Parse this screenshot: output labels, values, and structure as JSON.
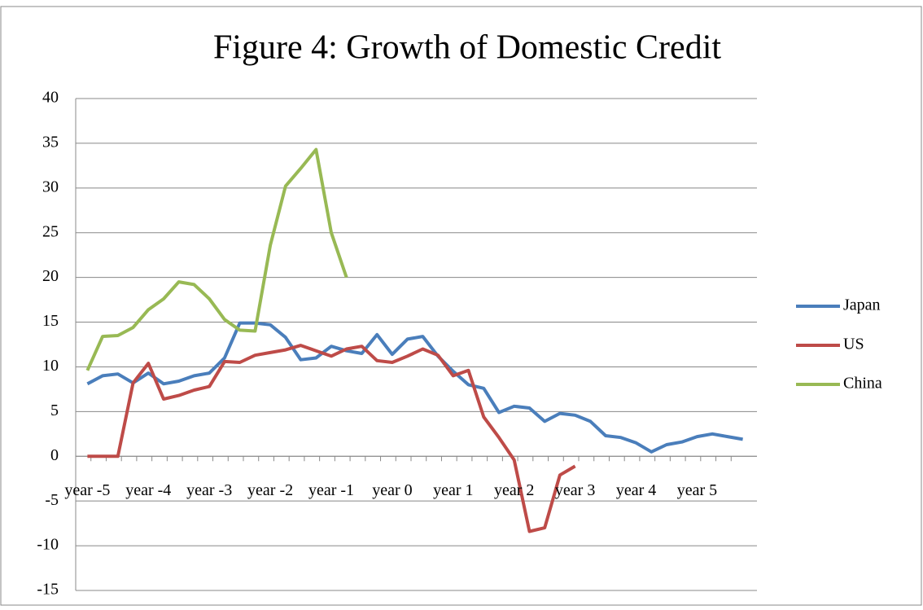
{
  "chart_data": {
    "type": "line",
    "title": "Figure 4: Growth of Domestic Credit",
    "categories": [
      "year -5",
      null,
      null,
      null,
      "year -4",
      null,
      null,
      null,
      "year -3",
      null,
      null,
      null,
      "year -2",
      null,
      null,
      null,
      "year -1",
      null,
      null,
      null,
      "year 0",
      null,
      null,
      null,
      "year 1",
      null,
      null,
      null,
      "year 2",
      null,
      null,
      null,
      "year 3",
      null,
      null,
      null,
      "year 4",
      null,
      null,
      null,
      "year 5",
      null,
      null,
      null
    ],
    "series": [
      {
        "name": "Japan",
        "color": "#4a7ebb",
        "values": [
          8.1,
          9.0,
          9.2,
          8.2,
          9.3,
          8.1,
          8.4,
          9.0,
          9.3,
          11.0,
          14.9,
          14.9,
          14.7,
          13.3,
          10.8,
          11.0,
          12.3,
          11.8,
          11.5,
          13.6,
          11.4,
          13.1,
          13.4,
          11.2,
          9.5,
          8.0,
          7.6,
          4.9,
          5.6,
          5.4,
          3.9,
          4.8,
          4.6,
          3.9,
          2.3,
          2.1,
          1.5,
          0.5,
          1.3,
          1.6,
          2.2,
          2.5,
          2.2,
          1.9
        ]
      },
      {
        "name": "US",
        "color": "#be4b48",
        "values": [
          0,
          0,
          0,
          8.2,
          10.4,
          6.4,
          6.8,
          7.4,
          7.8,
          10.6,
          10.5,
          11.3,
          11.6,
          11.9,
          12.4,
          11.8,
          11.2,
          12.0,
          12.3,
          10.7,
          10.5,
          11.2,
          12.0,
          11.3,
          9.0,
          9.6,
          4.4,
          2.1,
          -0.4,
          -8.4,
          -8.0,
          -2.1,
          -1.1,
          null,
          null,
          null,
          null,
          null,
          null,
          null,
          null,
          null,
          null,
          null
        ]
      },
      {
        "name": "China",
        "color": "#98b954",
        "values": [
          9.6,
          13.4,
          13.5,
          14.4,
          16.4,
          17.6,
          19.5,
          19.2,
          17.6,
          15.3,
          14.1,
          14.0,
          23.6,
          30.2,
          32.2,
          34.3,
          25.0,
          20.0,
          null,
          null,
          null,
          null,
          null,
          null,
          null,
          null,
          null,
          null,
          null,
          null,
          null,
          null,
          null,
          null,
          null,
          null,
          null,
          null,
          null,
          null,
          null,
          null,
          null,
          null
        ]
      }
    ],
    "ylim": [
      -15,
      40
    ],
    "yticks": [
      -15,
      -10,
      -5,
      0,
      5,
      10,
      15,
      20,
      25,
      30,
      35,
      40
    ],
    "grid": true,
    "legend": "right"
  }
}
